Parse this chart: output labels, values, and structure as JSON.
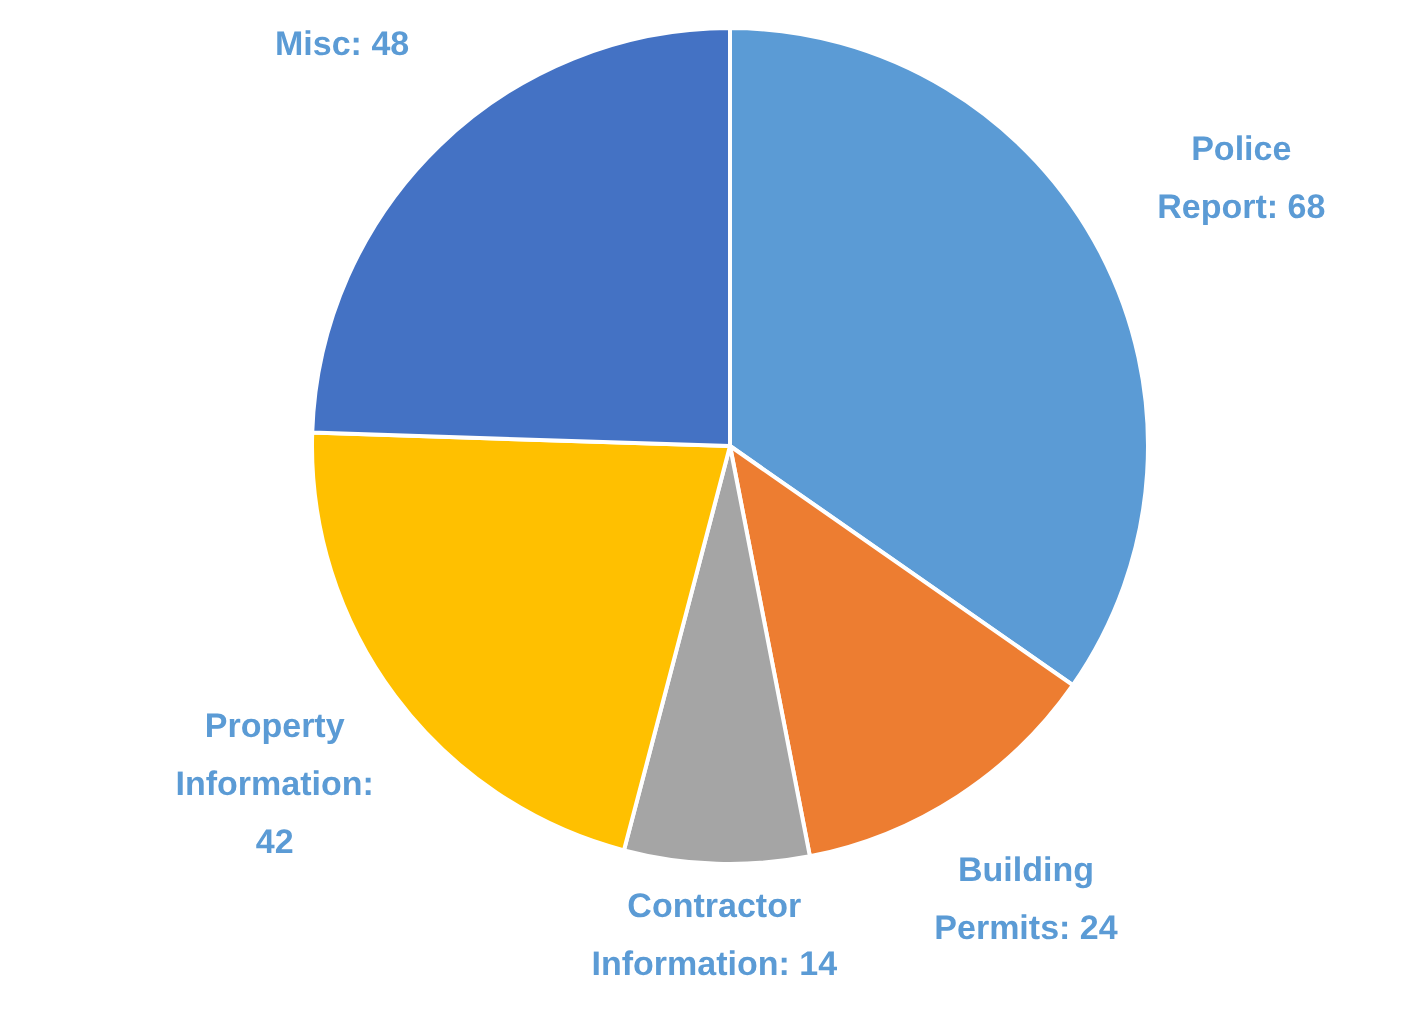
{
  "chart_data": {
    "type": "pie",
    "categories": [
      "Police Report",
      "Building Permits",
      "Contractor Information",
      "Property Information",
      "Misc"
    ],
    "values": [
      68,
      24,
      14,
      42,
      48
    ],
    "value_labels": [
      ": 68",
      ": 24",
      ": 14",
      ": 42",
      ": 48"
    ],
    "colors": [
      "#5b9bd5",
      "#ed7d31",
      "#a5a5a5",
      "#ffc000",
      "#4472c4"
    ],
    "legend": false
  }
}
